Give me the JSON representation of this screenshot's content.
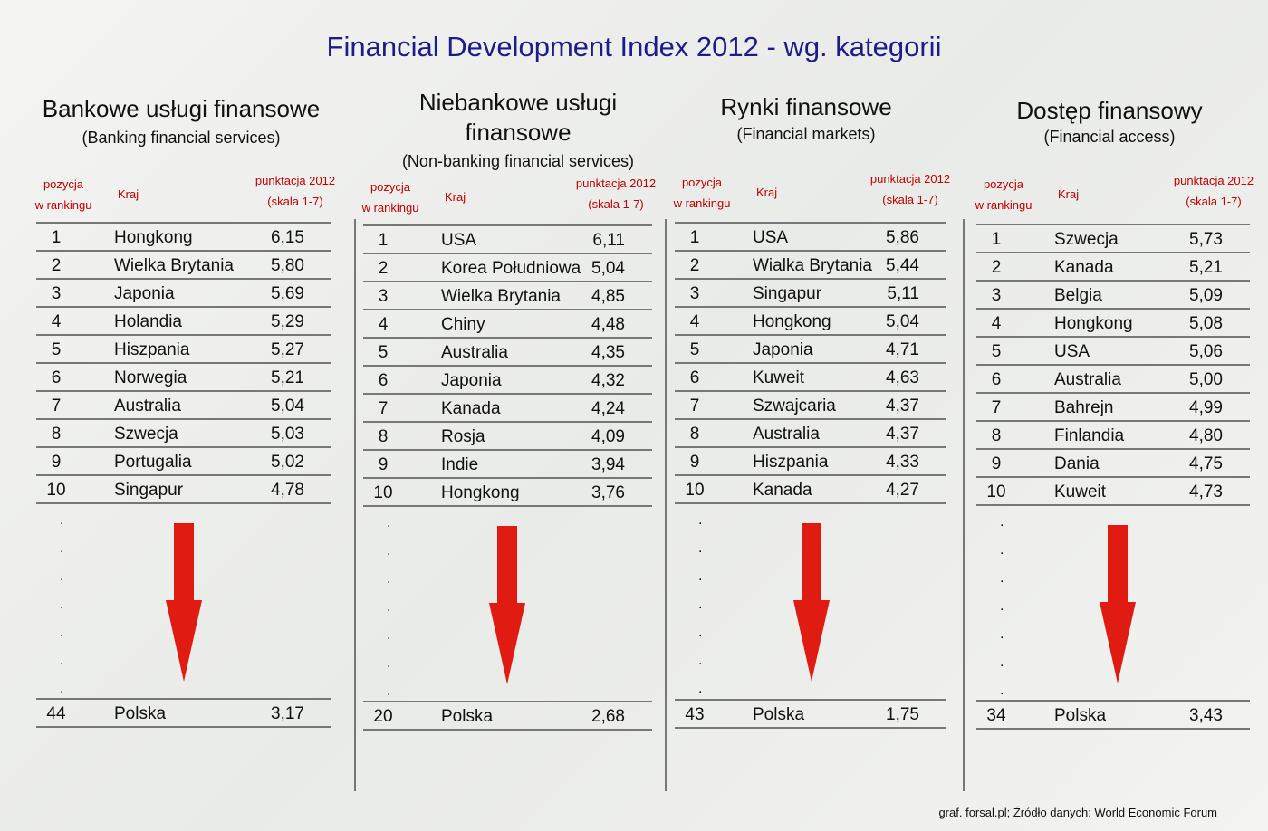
{
  "title": "Financial Development Index 2012 - wg. kategorii",
  "sections": [
    {
      "title": "Bankowe usługi finansowe",
      "subtitle": "(Banking financial services)",
      "headers": {
        "rank": [
          "pozycja",
          "w rankingu"
        ],
        "country": "Kraj",
        "score": [
          "punktacja 2012",
          "(skala 1-7)"
        ]
      },
      "rows": [
        [
          1,
          "Hongkong",
          "6,15"
        ],
        [
          2,
          "Wielka Brytania",
          "5,80"
        ],
        [
          3,
          "Japonia",
          "5,69"
        ],
        [
          4,
          "Holandia",
          "5,29"
        ],
        [
          5,
          "Hiszpania",
          "5,27"
        ],
        [
          6,
          "Norwegia",
          "5,21"
        ],
        [
          7,
          "Australia",
          "5,04"
        ],
        [
          8,
          "Szwecja",
          "5,03"
        ],
        [
          9,
          "Portugalia",
          "5,02"
        ],
        [
          10,
          "Singapur",
          "4,78"
        ]
      ],
      "last_row": [
        44,
        "Polska",
        "3,17"
      ]
    },
    {
      "title": "Niebankowe usługi finansowe",
      "subtitle": "(Non-banking financial services)",
      "headers": {
        "rank": [
          "pozycja",
          "w rankingu"
        ],
        "country": "Kraj",
        "score": [
          "punktacja 2012",
          "(skala 1-7)"
        ]
      },
      "rows": [
        [
          1,
          "USA",
          "6,11"
        ],
        [
          2,
          "Korea Południowa",
          "5,04"
        ],
        [
          3,
          "Wielka Brytania",
          "4,85"
        ],
        [
          4,
          "Chiny",
          "4,48"
        ],
        [
          5,
          "Australia",
          "4,35"
        ],
        [
          6,
          "Japonia",
          "4,32"
        ],
        [
          7,
          "Kanada",
          "4,24"
        ],
        [
          8,
          "Rosja",
          "4,09"
        ],
        [
          9,
          "Indie",
          "3,94"
        ],
        [
          10,
          "Hongkong",
          "3,76"
        ]
      ],
      "last_row": [
        20,
        "Polska",
        "2,68"
      ]
    },
    {
      "title": "Rynki finansowe",
      "subtitle": "(Financial markets)",
      "headers": {
        "rank": [
          "pozycja",
          "w rankingu"
        ],
        "country": "Kraj",
        "score": [
          "punktacja 2012",
          "(skala 1-7)"
        ]
      },
      "rows": [
        [
          1,
          "USA",
          "5,86"
        ],
        [
          2,
          "Wialka Brytania",
          "5,44"
        ],
        [
          3,
          "Singapur",
          "5,11"
        ],
        [
          4,
          "Hongkong",
          "5,04"
        ],
        [
          5,
          "Japonia",
          "4,71"
        ],
        [
          6,
          "Kuweit",
          "4,63"
        ],
        [
          7,
          "Szwajcaria",
          "4,37"
        ],
        [
          8,
          "Australia",
          "4,37"
        ],
        [
          9,
          "Hiszpania",
          "4,33"
        ],
        [
          10,
          "Kanada",
          "4,27"
        ]
      ],
      "last_row": [
        43,
        "Polska",
        "1,75"
      ]
    },
    {
      "title": "Dostęp finansowy",
      "subtitle": "(Financial access)",
      "headers": {
        "rank": [
          "pozycja",
          "w rankingu"
        ],
        "country": "Kraj",
        "score": [
          "punktacja 2012",
          "(skala 1-7)"
        ]
      },
      "rows": [
        [
          1,
          "Szwecja",
          "5,73"
        ],
        [
          2,
          "Kanada",
          "5,21"
        ],
        [
          3,
          "Belgia",
          "5,09"
        ],
        [
          4,
          "Hongkong",
          "5,08"
        ],
        [
          5,
          "USA",
          "5,06"
        ],
        [
          6,
          "Australia",
          "5,00"
        ],
        [
          7,
          "Bahrejn",
          "4,99"
        ],
        [
          8,
          "Finlandia",
          "4,80"
        ],
        [
          9,
          "Dania",
          "4,75"
        ],
        [
          10,
          "Kuweit",
          "4,73"
        ]
      ],
      "last_row": [
        34,
        "Polska",
        "3,43"
      ]
    }
  ],
  "source": "graf. forsal.pl; Źródło danych: World Economic Forum"
}
